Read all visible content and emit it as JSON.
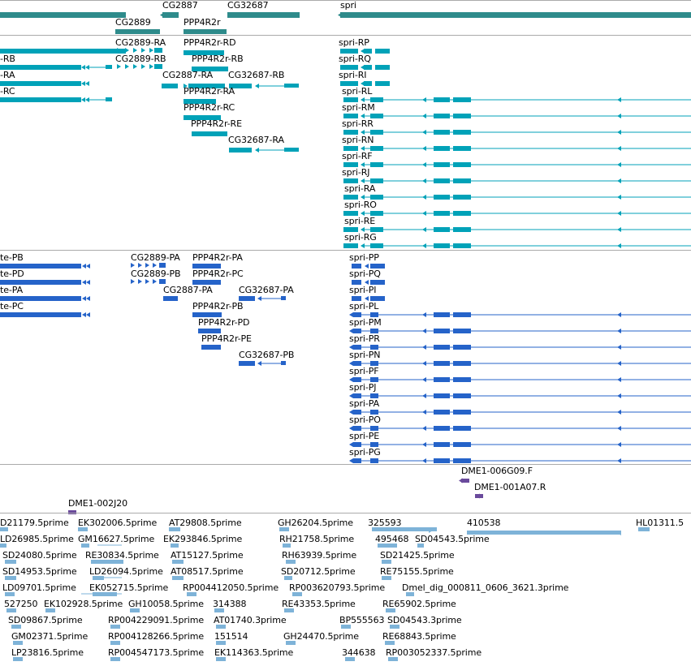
{
  "colors": {
    "gene": "#2e8b8b",
    "transcript_rna": "#00a2b8",
    "transcript_protein": "#2563c9",
    "clone": "#6a4a9c",
    "est": "#7eb3d8",
    "divider": "#aaaaaa"
  },
  "tracks": {
    "genes": {
      "labels": [
        "CG2887",
        "CG2889",
        "PPP4R2r",
        "CG32687",
        "spri"
      ]
    },
    "transcripts": {
      "labels": [
        "-RB",
        "-RA",
        "-RC",
        "CG2889-RA",
        "CG2889-RB",
        "CG2887-RA",
        "PPP4R2r-RD",
        "PPP4R2r-RB",
        "PPP4R2r-RA",
        "PPP4R2r-RC",
        "PPP4R2r-RE",
        "CG32687-RB",
        "CG32687-RA",
        "spri-RP",
        "spri-RQ",
        "spri-RI",
        "spri-RL",
        "spri-RM",
        "spri-RR",
        "spri-RN",
        "spri-RF",
        "spri-RJ",
        "spri-RA",
        "spri-RO",
        "spri-RE",
        "spri-RG"
      ]
    },
    "proteins": {
      "labels": [
        "te-PB",
        "te-PD",
        "te-PA",
        "te-PC",
        "CG2889-PA",
        "CG2889-PB",
        "PPP4R2r-PA",
        "PPP4R2r-PC",
        "CG2887-PA",
        "PPP4R2r-PB",
        "PPP4R2r-PD",
        "PPP4R2r-PE",
        "CG32687-PA",
        "CG32687-PB",
        "spri-PP",
        "spri-PQ",
        "spri-PI",
        "spri-PL",
        "spri-PM",
        "spri-PR",
        "spri-PN",
        "spri-PF",
        "spri-PJ",
        "spri-PA",
        "spri-PO",
        "spri-PE",
        "spri-PG"
      ]
    },
    "clones": {
      "labels": [
        "DME1-006G09.F",
        "DME1-001A07.R",
        "DME1-002J20"
      ]
    },
    "ests": {
      "labels": [
        "D21179.5prime",
        "EK302006.5prime",
        "AT29808.5prime",
        "GH26204.5prime",
        "325593",
        "410538",
        "HL01311.5",
        "LD26985.5prime",
        "GM16627.5prime",
        "EK293846.5prime",
        "RH21758.5prime",
        "495468",
        "SD04543.5prime",
        "SD24080.5prime",
        "RE30834.5prime",
        "AT15127.5prime",
        "RH63939.5prime",
        "SD21425.5prime",
        "SD14953.5prime",
        "LD26094.5prime",
        "AT08517.5prime",
        "SD20712.5prime",
        "RE75155.5prime",
        "LD09701.5prime",
        "EK052715.5prime",
        "RP004412050.5prime",
        "RP003620793.5prime",
        "Dmel_dig_000811_0606_3621.3prime",
        "527250",
        "EK102928.5prime",
        "GH10058.5prime",
        "314388",
        "RE43353.5prime",
        "RE65902.5prime",
        "SD09867.5prime",
        "RP004229091.5prime",
        "AT01740.3prime",
        "BP555563",
        "SD04543.3prime",
        "GM02371.5prime",
        "RP004128266.5prime",
        "151514",
        "GH24470.5prime",
        "RE68843.5prime",
        "LP23816.5prime",
        "RP004547173.5prime",
        "EK114363.5prime",
        "344638",
        "RP003052337.5prime"
      ]
    }
  }
}
